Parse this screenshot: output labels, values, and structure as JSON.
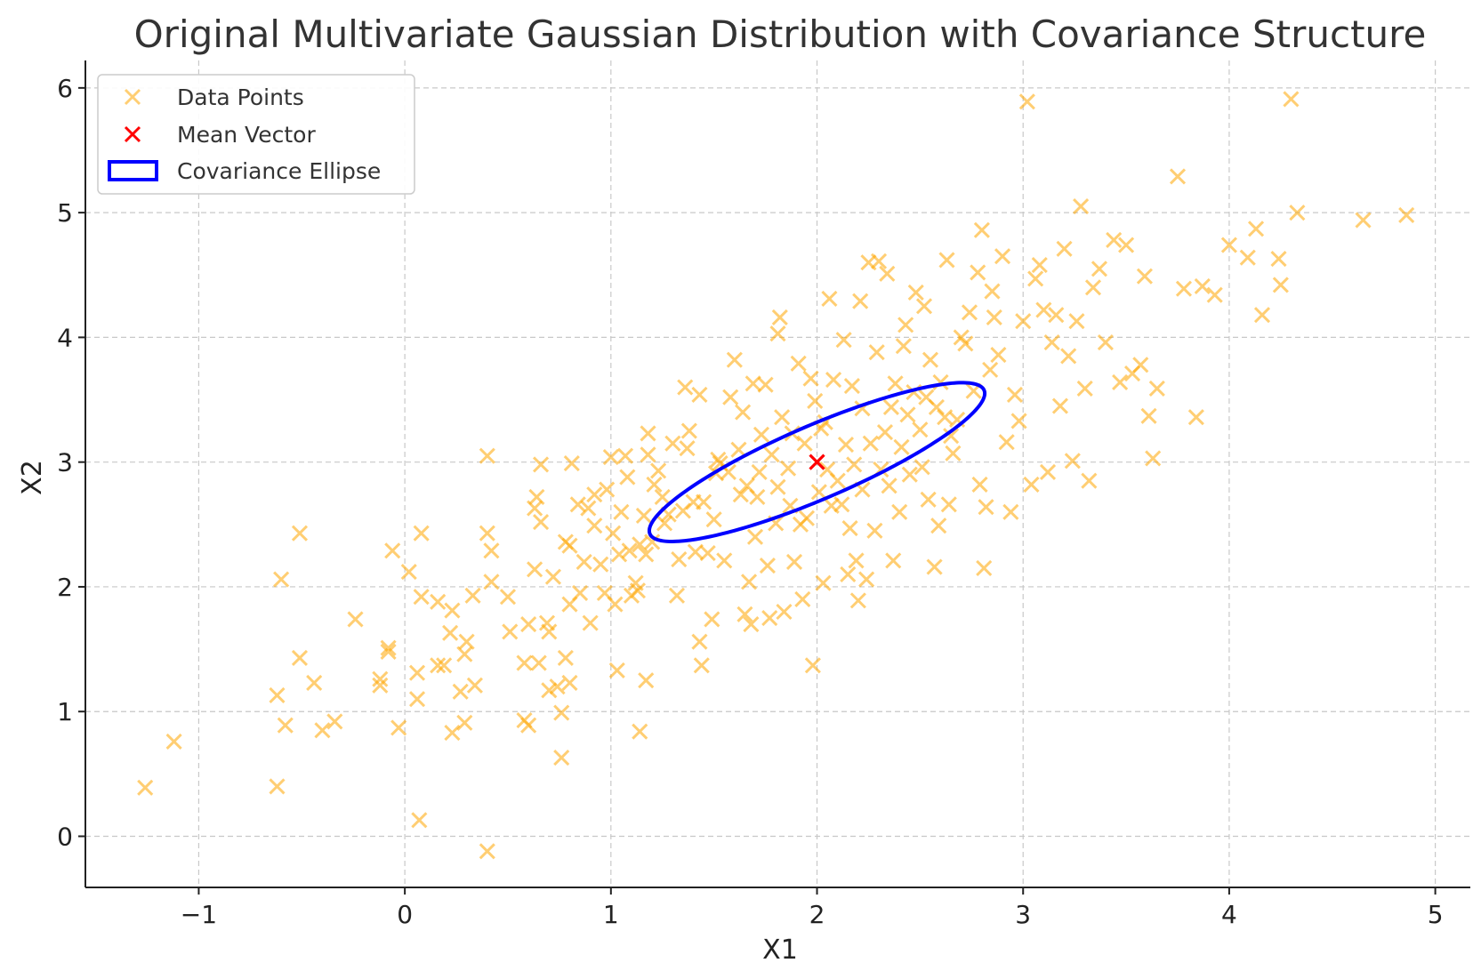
{
  "colors": {
    "data_points": "#FFA500",
    "mean_vector": "#FF0000",
    "ellipse": "#0000FF",
    "grid": "#c8c8c8",
    "axes": "#222222"
  },
  "chart_data": {
    "type": "scatter",
    "title": "Original Multivariate Gaussian Distribution with Covariance Structure",
    "xlabel": "X1",
    "ylabel": "X2",
    "xlim": [
      -1.55,
      5.17
    ],
    "ylim": [
      -0.41,
      6.22
    ],
    "xticks": [
      -1,
      0,
      1,
      2,
      3,
      4,
      5
    ],
    "xtick_labels": [
      "−1",
      "0",
      "1",
      "2",
      "3",
      "4",
      "5"
    ],
    "yticks": [
      0,
      1,
      2,
      3,
      4,
      5,
      6
    ],
    "ytick_labels": [
      "0",
      "1",
      "2",
      "3",
      "4",
      "5",
      "6"
    ],
    "grid": true,
    "legend_position": "top-left",
    "legend": [
      {
        "label": "Data Points",
        "marker": "x",
        "color": "#FFA500"
      },
      {
        "label": "Mean Vector",
        "marker": "x",
        "color": "#FF0000"
      },
      {
        "label": "Covariance Ellipse",
        "marker": "rect",
        "color": "#0000FF"
      }
    ],
    "mean_vector": {
      "name": "Mean Vector",
      "x": 2,
      "y": 3
    },
    "ellipse": {
      "name": "Covariance Ellipse",
      "center": [
        2,
        3
      ],
      "width": 2.0,
      "height": 0.52,
      "angle_deg": 37
    },
    "series": [
      {
        "name": "Data Points",
        "marker": "x",
        "points": [
          [
            -1.26,
            0.39
          ],
          [
            -1.12,
            0.76
          ],
          [
            -0.62,
            0.4
          ],
          [
            -0.62,
            1.13
          ],
          [
            -0.6,
            2.06
          ],
          [
            -0.58,
            0.89
          ],
          [
            -0.51,
            1.43
          ],
          [
            -0.51,
            2.43
          ],
          [
            -0.44,
            1.23
          ],
          [
            -0.4,
            0.85
          ],
          [
            -0.34,
            0.92
          ],
          [
            -0.24,
            1.74
          ],
          [
            -0.12,
            1.21
          ],
          [
            -0.12,
            1.26
          ],
          [
            -0.08,
            1.51
          ],
          [
            -0.08,
            1.48
          ],
          [
            -0.06,
            2.29
          ],
          [
            -0.03,
            0.87
          ],
          [
            0.02,
            2.12
          ],
          [
            0.06,
            1.1
          ],
          [
            0.06,
            1.31
          ],
          [
            0.07,
            0.13
          ],
          [
            0.08,
            1.92
          ],
          [
            0.08,
            2.43
          ],
          [
            0.16,
            1.88
          ],
          [
            0.16,
            1.37
          ],
          [
            0.19,
            1.37
          ],
          [
            0.22,
            1.63
          ],
          [
            0.23,
            1.81
          ],
          [
            0.23,
            0.83
          ],
          [
            0.27,
            1.16
          ],
          [
            0.29,
            0.91
          ],
          [
            0.29,
            1.46
          ],
          [
            0.3,
            1.56
          ],
          [
            0.33,
            1.93
          ],
          [
            0.34,
            1.21
          ],
          [
            0.4,
            -0.12
          ],
          [
            0.4,
            2.43
          ],
          [
            0.4,
            3.05
          ],
          [
            0.42,
            2.29
          ],
          [
            0.42,
            2.04
          ],
          [
            0.5,
            1.92
          ],
          [
            0.51,
            1.64
          ],
          [
            0.58,
            1.39
          ],
          [
            0.58,
            0.93
          ],
          [
            0.6,
            0.89
          ],
          [
            0.6,
            1.7
          ],
          [
            0.63,
            2.63
          ],
          [
            0.63,
            2.14
          ],
          [
            0.64,
            2.72
          ],
          [
            0.65,
            1.39
          ],
          [
            0.66,
            2.52
          ],
          [
            0.66,
            2.98
          ],
          [
            0.69,
            1.71
          ],
          [
            0.7,
            1.64
          ],
          [
            0.7,
            1.17
          ],
          [
            0.72,
            2.08
          ],
          [
            0.74,
            1.2
          ],
          [
            0.76,
            0.63
          ],
          [
            0.76,
            0.99
          ],
          [
            0.78,
            2.36
          ],
          [
            0.78,
            1.43
          ],
          [
            0.8,
            1.23
          ],
          [
            0.8,
            2.33
          ],
          [
            0.8,
            1.86
          ],
          [
            0.81,
            2.99
          ],
          [
            0.84,
            2.66
          ],
          [
            0.85,
            1.95
          ],
          [
            0.87,
            2.2
          ],
          [
            0.89,
            2.63
          ],
          [
            0.9,
            1.71
          ],
          [
            0.92,
            2.74
          ],
          [
            0.92,
            2.49
          ],
          [
            0.95,
            2.18
          ],
          [
            0.97,
            1.95
          ],
          [
            0.98,
            2.78
          ],
          [
            1.0,
            3.04
          ],
          [
            1.01,
            2.43
          ],
          [
            1.02,
            1.86
          ],
          [
            1.03,
            1.33
          ],
          [
            1.04,
            2.26
          ],
          [
            1.05,
            2.6
          ],
          [
            1.07,
            3.05
          ],
          [
            1.08,
            2.88
          ],
          [
            1.09,
            2.29
          ],
          [
            1.1,
            1.93
          ],
          [
            1.12,
            2.03
          ],
          [
            1.13,
            1.97
          ],
          [
            1.14,
            2.34
          ],
          [
            1.14,
            0.84
          ],
          [
            1.16,
            2.57
          ],
          [
            1.17,
            2.26
          ],
          [
            1.17,
            1.25
          ],
          [
            1.18,
            3.23
          ],
          [
            1.18,
            3.06
          ],
          [
            1.2,
            2.36
          ],
          [
            1.21,
            2.82
          ],
          [
            1.23,
            2.93
          ],
          [
            1.25,
            2.72
          ],
          [
            1.26,
            2.51
          ],
          [
            1.28,
            2.58
          ],
          [
            1.3,
            3.15
          ],
          [
            1.32,
            1.93
          ],
          [
            1.33,
            2.22
          ],
          [
            1.35,
            2.61
          ],
          [
            1.36,
            3.6
          ],
          [
            1.37,
            3.11
          ],
          [
            1.38,
            3.25
          ],
          [
            1.4,
            2.68
          ],
          [
            1.41,
            2.28
          ],
          [
            1.43,
            3.54
          ],
          [
            1.43,
            1.56
          ],
          [
            1.44,
            1.37
          ],
          [
            1.45,
            2.68
          ],
          [
            1.47,
            2.27
          ],
          [
            1.49,
            1.74
          ],
          [
            1.5,
            2.54
          ],
          [
            1.51,
            2.91
          ],
          [
            1.52,
            3.02
          ],
          [
            1.53,
            2.99
          ],
          [
            1.55,
            2.21
          ],
          [
            1.57,
            2.92
          ],
          [
            1.58,
            3.52
          ],
          [
            1.6,
            3.82
          ],
          [
            1.62,
            3.1
          ],
          [
            1.63,
            2.74
          ],
          [
            1.64,
            3.4
          ],
          [
            1.65,
            1.78
          ],
          [
            1.66,
            2.81
          ],
          [
            1.67,
            2.04
          ],
          [
            1.68,
            1.7
          ],
          [
            1.69,
            3.63
          ],
          [
            1.7,
            2.4
          ],
          [
            1.71,
            2.72
          ],
          [
            1.72,
            2.92
          ],
          [
            1.73,
            3.22
          ],
          [
            1.75,
            3.62
          ],
          [
            1.76,
            2.17
          ],
          [
            1.77,
            1.75
          ],
          [
            1.78,
            3.06
          ],
          [
            1.8,
            2.51
          ],
          [
            1.81,
            4.03
          ],
          [
            1.81,
            2.8
          ],
          [
            1.82,
            4.16
          ],
          [
            1.83,
            3.36
          ],
          [
            1.84,
            1.8
          ],
          [
            1.86,
            2.95
          ],
          [
            1.87,
            2.65
          ],
          [
            1.88,
            3.23
          ],
          [
            1.89,
            2.2
          ],
          [
            1.91,
            3.79
          ],
          [
            1.92,
            2.5
          ],
          [
            1.93,
            1.9
          ],
          [
            1.94,
            3.15
          ],
          [
            1.95,
            2.55
          ],
          [
            1.97,
            3.67
          ],
          [
            1.98,
            1.37
          ],
          [
            1.99,
            3.49
          ],
          [
            2.01,
            2.76
          ],
          [
            2.02,
            3.27
          ],
          [
            2.03,
            2.03
          ],
          [
            2.04,
            3.32
          ],
          [
            2.05,
            2.94
          ],
          [
            2.06,
            4.31
          ],
          [
            2.07,
            2.65
          ],
          [
            2.08,
            3.66
          ],
          [
            2.1,
            2.85
          ],
          [
            2.12,
            2.66
          ],
          [
            2.13,
            3.98
          ],
          [
            2.14,
            3.14
          ],
          [
            2.15,
            2.1
          ],
          [
            2.16,
            2.47
          ],
          [
            2.17,
            3.61
          ],
          [
            2.18,
            2.98
          ],
          [
            2.19,
            2.21
          ],
          [
            2.2,
            1.89
          ],
          [
            2.21,
            4.29
          ],
          [
            2.22,
            3.43
          ],
          [
            2.22,
            2.78
          ],
          [
            2.24,
            2.06
          ],
          [
            2.25,
            4.6
          ],
          [
            2.26,
            3.15
          ],
          [
            2.28,
            2.45
          ],
          [
            2.29,
            3.88
          ],
          [
            2.3,
            4.61
          ],
          [
            2.31,
            2.94
          ],
          [
            2.33,
            3.24
          ],
          [
            2.34,
            4.51
          ],
          [
            2.35,
            2.81
          ],
          [
            2.36,
            3.44
          ],
          [
            2.37,
            2.21
          ],
          [
            2.38,
            3.63
          ],
          [
            2.4,
            2.6
          ],
          [
            2.41,
            3.12
          ],
          [
            2.42,
            3.93
          ],
          [
            2.43,
            4.1
          ],
          [
            2.44,
            3.38
          ],
          [
            2.45,
            2.9
          ],
          [
            2.47,
            3.56
          ],
          [
            2.48,
            4.36
          ],
          [
            2.5,
            3.26
          ],
          [
            2.51,
            2.96
          ],
          [
            2.52,
            4.25
          ],
          [
            2.53,
            3.52
          ],
          [
            2.54,
            2.7
          ],
          [
            2.55,
            3.82
          ],
          [
            2.57,
            2.16
          ],
          [
            2.58,
            3.44
          ],
          [
            2.59,
            2.49
          ],
          [
            2.6,
            3.64
          ],
          [
            2.62,
            3.36
          ],
          [
            2.63,
            4.62
          ],
          [
            2.64,
            2.66
          ],
          [
            2.65,
            3.21
          ],
          [
            2.66,
            3.07
          ],
          [
            2.68,
            3.34
          ],
          [
            2.7,
            4.0
          ],
          [
            2.72,
            3.95
          ],
          [
            2.74,
            4.2
          ],
          [
            2.76,
            3.57
          ],
          [
            2.78,
            4.52
          ],
          [
            2.79,
            2.82
          ],
          [
            2.8,
            4.86
          ],
          [
            2.81,
            2.15
          ],
          [
            2.82,
            2.64
          ],
          [
            2.84,
            3.74
          ],
          [
            2.85,
            4.37
          ],
          [
            2.86,
            4.16
          ],
          [
            2.88,
            3.86
          ],
          [
            2.9,
            4.65
          ],
          [
            2.92,
            3.16
          ],
          [
            2.94,
            2.6
          ],
          [
            2.96,
            3.54
          ],
          [
            2.98,
            3.33
          ],
          [
            3.0,
            4.13
          ],
          [
            3.02,
            5.89
          ],
          [
            3.04,
            2.82
          ],
          [
            3.06,
            4.47
          ],
          [
            3.08,
            4.58
          ],
          [
            3.1,
            4.22
          ],
          [
            3.12,
            2.92
          ],
          [
            3.14,
            3.96
          ],
          [
            3.16,
            4.18
          ],
          [
            3.18,
            3.45
          ],
          [
            3.2,
            4.71
          ],
          [
            3.22,
            3.85
          ],
          [
            3.24,
            3.01
          ],
          [
            3.26,
            4.13
          ],
          [
            3.28,
            5.05
          ],
          [
            3.3,
            3.59
          ],
          [
            3.32,
            2.85
          ],
          [
            3.34,
            4.4
          ],
          [
            3.37,
            4.55
          ],
          [
            3.4,
            3.96
          ],
          [
            3.44,
            4.78
          ],
          [
            3.47,
            3.64
          ],
          [
            3.5,
            4.74
          ],
          [
            3.53,
            3.71
          ],
          [
            3.57,
            3.78
          ],
          [
            3.59,
            4.49
          ],
          [
            3.61,
            3.37
          ],
          [
            3.63,
            3.03
          ],
          [
            3.65,
            3.59
          ],
          [
            3.75,
            5.29
          ],
          [
            3.78,
            4.39
          ],
          [
            3.84,
            3.36
          ],
          [
            3.87,
            4.41
          ],
          [
            3.93,
            4.34
          ],
          [
            4.0,
            4.74
          ],
          [
            4.09,
            4.64
          ],
          [
            4.13,
            4.87
          ],
          [
            4.16,
            4.18
          ],
          [
            4.24,
            4.63
          ],
          [
            4.25,
            4.42
          ],
          [
            4.3,
            5.91
          ],
          [
            4.33,
            5.0
          ],
          [
            4.65,
            4.94
          ],
          [
            4.86,
            4.98
          ]
        ]
      }
    ]
  }
}
